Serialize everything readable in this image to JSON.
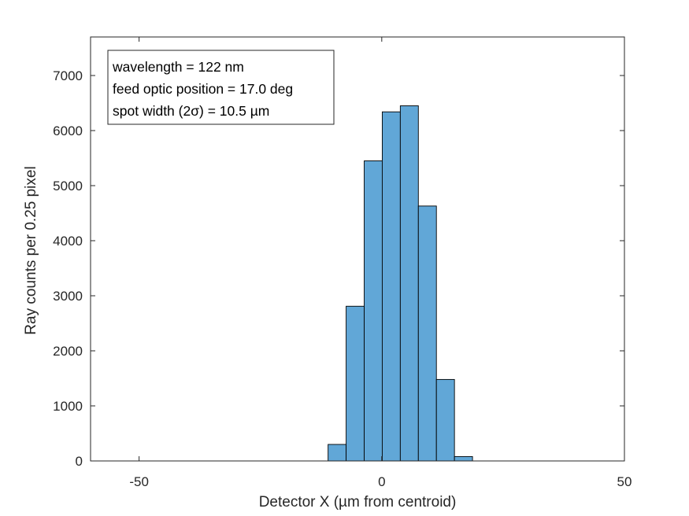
{
  "chart_data": {
    "type": "bar",
    "title": "",
    "xlabel": "Detector X (µm from centroid)",
    "ylabel": "Ray counts per 0.25 pixel",
    "xlim": [
      -60,
      50
    ],
    "ylim": [
      0,
      7700
    ],
    "xticks": [
      -50,
      0,
      50
    ],
    "yticks": [
      0,
      1000,
      2000,
      3000,
      4000,
      5000,
      6000,
      7000
    ],
    "bin_width": 3.72,
    "bin_edges": [
      -48.26,
      -44.54,
      -40.82,
      -37.1,
      -33.38,
      -29.66,
      -25.94,
      -22.22,
      -18.5,
      -14.78,
      -11.06,
      -7.34,
      -3.62,
      0.1,
      3.82,
      7.54,
      11.26,
      14.98,
      18.7,
      22.42,
      26.14,
      29.86,
      33.58,
      37.3,
      41.02,
      44.74,
      48.46
    ],
    "counts": [
      0,
      0,
      0,
      0,
      0,
      0,
      0,
      0,
      0,
      0,
      300,
      2810,
      5450,
      6340,
      6450,
      4630,
      1480,
      80,
      0,
      0,
      0,
      0,
      0,
      0,
      0,
      0
    ],
    "bar_color": "#61a7d7",
    "bar_edge_color": "#000000",
    "grid": false,
    "annotation": {
      "lines": [
        "wavelength = 122 nm",
        "feed optic position = 17.0 deg",
        "spot width (2σ) = 10.5 µm"
      ]
    }
  }
}
